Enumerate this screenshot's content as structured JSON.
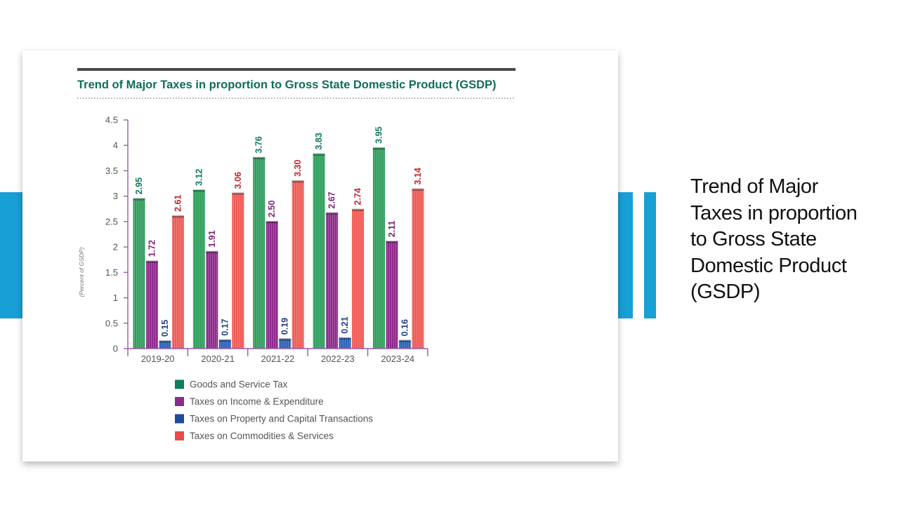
{
  "slide": {
    "side_title": "Trend of Major Taxes in proportion to Gross State Domestic Product (GSDP)"
  },
  "chart_data": {
    "type": "bar",
    "title": "Trend of Major Taxes in proportion to Gross State Domestic Product (GSDP)",
    "xlabel": "",
    "ylabel": "(Percent of GSDP)",
    "ylim": [
      0,
      4.5
    ],
    "yticks": [
      "0",
      "0.5",
      "1",
      "1.5",
      "2",
      "2.5",
      "3",
      "3.5",
      "4",
      "4.5"
    ],
    "categories": [
      "2019-20",
      "2020-21",
      "2021-22",
      "2022-23",
      "2023-24"
    ],
    "series": [
      {
        "name": "Goods and Service Tax",
        "color": "#2f9e5c",
        "label_color": "#0f7a5c",
        "values": [
          2.95,
          3.12,
          3.76,
          3.83,
          3.95
        ],
        "labels": [
          "2.95",
          "3.12",
          "3.76",
          "3.83",
          "3.95"
        ]
      },
      {
        "name": "Taxes on Income & Expenditure",
        "color": "#8f2a8c",
        "label_color": "#7d237a",
        "values": [
          1.72,
          1.91,
          2.5,
          2.67,
          2.11
        ],
        "labels": [
          "1.72",
          "1.91",
          "2.50",
          "2.67",
          "2.11"
        ]
      },
      {
        "name": "Taxes on Property and Capital Transactions",
        "color": "#2a63b8",
        "label_color": "#1f3f87",
        "values": [
          0.15,
          0.17,
          0.19,
          0.21,
          0.16
        ],
        "labels": [
          "0.15",
          "0.17",
          "0.19",
          "0.21",
          "0.16"
        ]
      },
      {
        "name": "Taxes on Commodities & Services",
        "color": "#ef5a55",
        "label_color": "#c0262c",
        "values": [
          2.61,
          3.06,
          3.3,
          2.74,
          3.14
        ],
        "labels": [
          "2.61",
          "3.06",
          "3.30",
          "2.74",
          "3.14"
        ]
      }
    ],
    "legend": [
      "Goods and Service Tax",
      "Taxes on Income & Expenditure",
      "Taxes on Property and Capital Transactions",
      "Taxes on Commodities & Services"
    ],
    "legend_colors": [
      "#0f7d5e",
      "#8a2a8a",
      "#1f4a9a",
      "#e94b4b"
    ],
    "legend_position": "bottom-left"
  }
}
